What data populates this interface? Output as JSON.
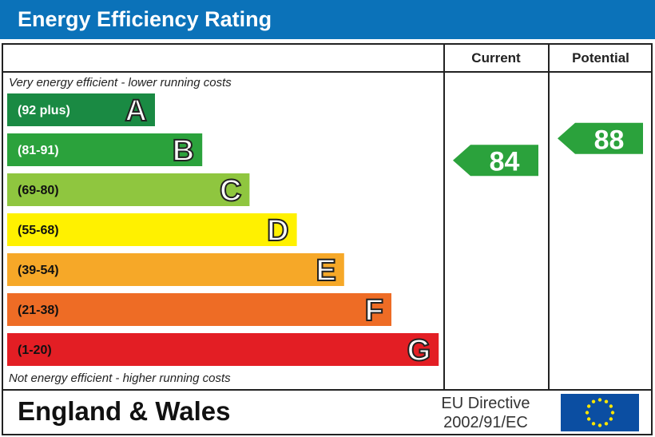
{
  "chart_data": {
    "type": "bar",
    "title": "Energy Efficiency Rating",
    "column_headers": {
      "current": "Current",
      "potential": "Potential"
    },
    "top_note": "Very energy efficient - lower running costs",
    "bottom_note": "Not energy efficient - higher running costs",
    "bands": [
      {
        "letter": "A",
        "range": "(92 plus)",
        "color": "#1a8a43"
      },
      {
        "letter": "B",
        "range": "(81-91)",
        "color": "#2ba23c"
      },
      {
        "letter": "C",
        "range": "(69-80)",
        "color": "#8fc63f"
      },
      {
        "letter": "D",
        "range": "(55-68)",
        "color": "#fff100"
      },
      {
        "letter": "E",
        "range": "(39-54)",
        "color": "#f6a828"
      },
      {
        "letter": "F",
        "range": "(21-38)",
        "color": "#ee6c25"
      },
      {
        "letter": "G",
        "range": "(1-20)",
        "color": "#e31e24"
      }
    ],
    "current": {
      "value": 84,
      "band": "B",
      "color": "#2ba23c"
    },
    "potential": {
      "value": 88,
      "band": "B",
      "color": "#2ba23c"
    }
  },
  "footer": {
    "region": "England & Wales",
    "directive_line1": "EU Directive",
    "directive_line2": "2002/91/EC",
    "flag_icon": "eu-flag-icon"
  },
  "colors": {
    "title_bar": "#0b72b9",
    "flag_blue": "#0b4ea2",
    "flag_star": "#ffe600"
  }
}
